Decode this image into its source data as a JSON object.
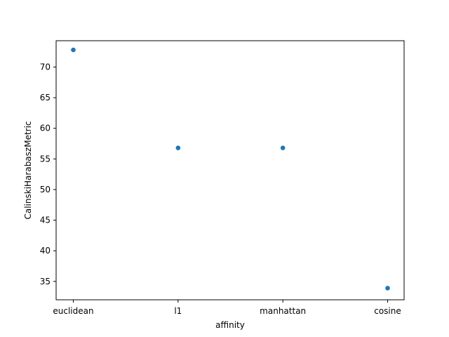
{
  "chart_data": {
    "type": "scatter",
    "title": "",
    "xlabel": "affinity",
    "ylabel": "CalinskiHarabaszMetric",
    "categories": [
      "euclidean",
      "l1",
      "manhattan",
      "cosine"
    ],
    "series": [
      {
        "values": [
          72.8,
          56.8,
          56.8,
          33.9
        ]
      }
    ],
    "ylim": [
      32.0,
      74.3
    ],
    "yticks": [
      35,
      40,
      45,
      50,
      55,
      60,
      65,
      70
    ],
    "grid": false,
    "legend": "none",
    "colors": {
      "marker": "#1f77b4",
      "axes": "#000000",
      "background": "#ffffff"
    }
  }
}
